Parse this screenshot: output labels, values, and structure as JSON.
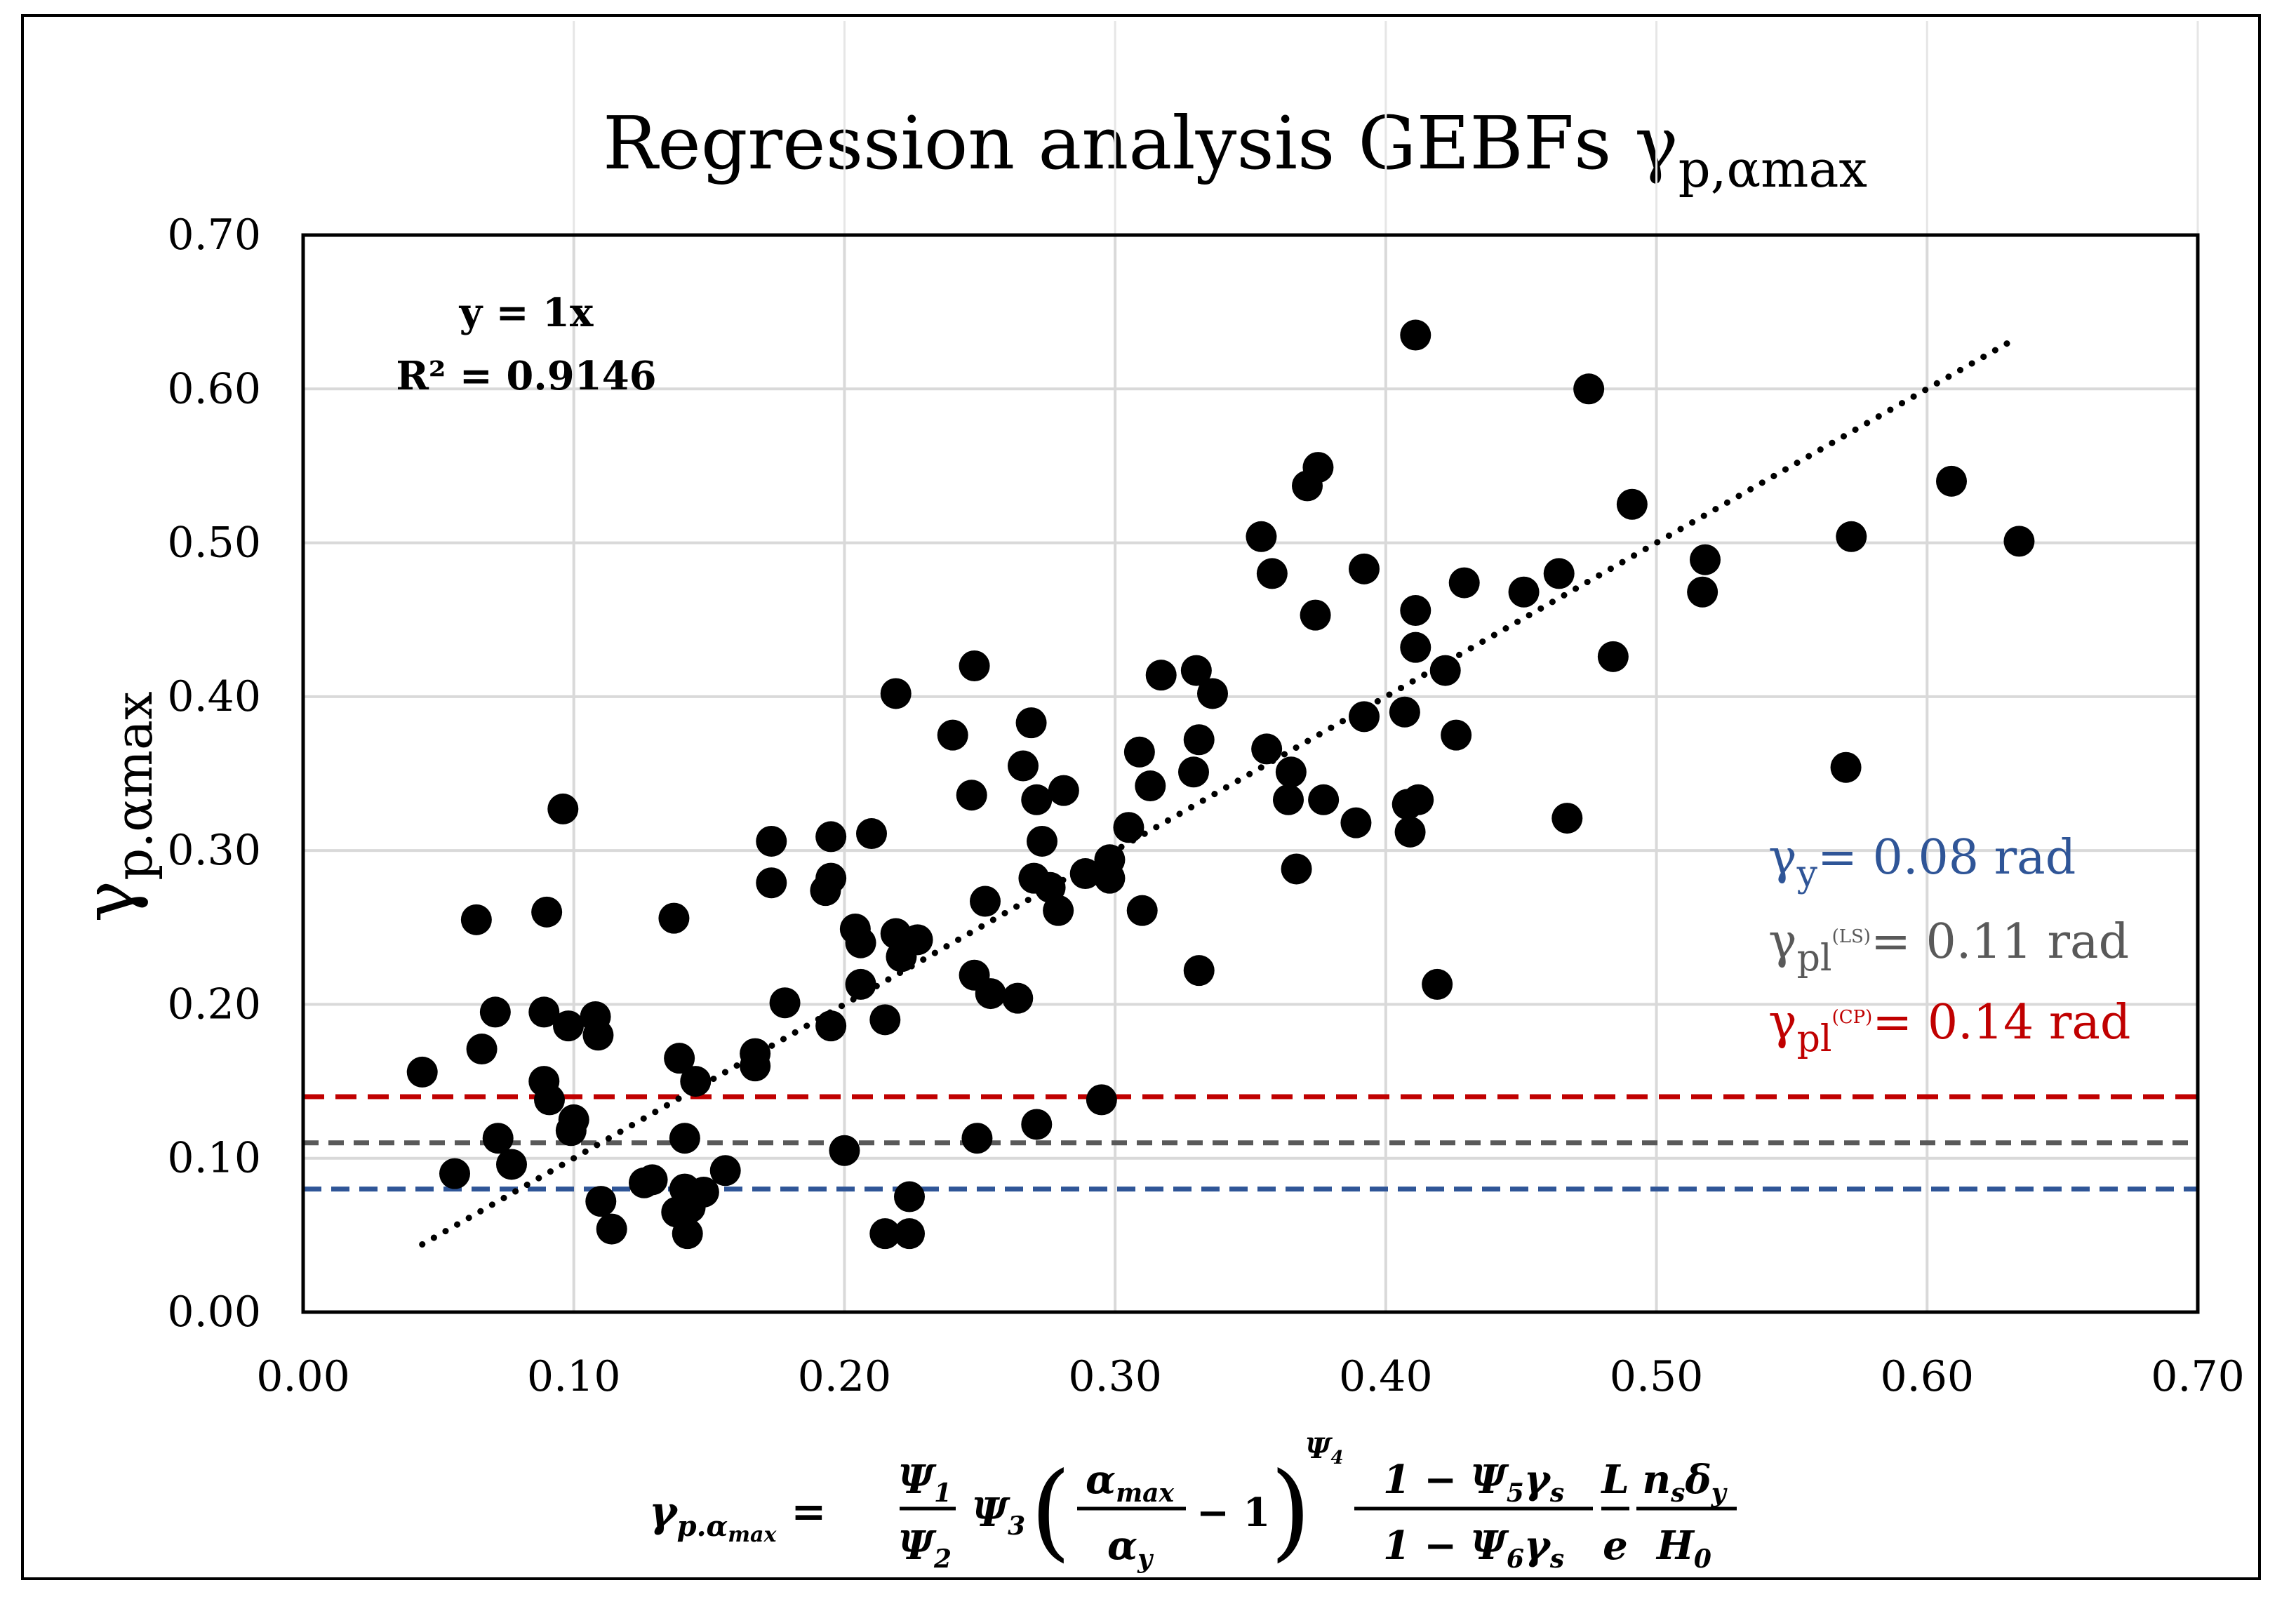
{
  "chart_data": {
    "type": "scatter",
    "title": "Regression analysis GEBFs γp,αmax",
    "title_main": "Regression analysis GEBFs γ",
    "title_sub": "p,αmax",
    "ylabel_main": "γ",
    "ylabel_sub": "p.αmax",
    "xlabel": "γp.αmax = (Ψ1/Ψ2) Ψ3 (αmax/αy − 1)^Ψ4 · (1 − Ψ5γs)/(1 − Ψ6γs) · (L/e) · (nsδy/H0)",
    "xlim": [
      0,
      0.7
    ],
    "ylim": [
      0,
      0.7
    ],
    "grid": true,
    "x_ticks": [
      "0.00",
      "0.10",
      "0.20",
      "0.30",
      "0.40",
      "0.50",
      "0.60",
      "0.70"
    ],
    "y_ticks": [
      "0.00",
      "0.10",
      "0.20",
      "0.30",
      "0.40",
      "0.50",
      "0.60",
      "0.70"
    ],
    "trendline": {
      "equation": "y = 1x",
      "r2_label": "R² = 0.9146",
      "x_range": [
        0.044,
        0.632
      ],
      "slope": 1.0
    },
    "reference_lines": [
      {
        "value": 0.08,
        "color": "#2f5597",
        "label_main": "γ",
        "label_sub": "y",
        "label_sup": "",
        "label_value": "= 0.08 rad"
      },
      {
        "value": 0.11,
        "color": "#595959",
        "label_main": "γ",
        "label_sub": "pl",
        "label_sup": "(LS)",
        "label_value": "= 0.11 rad"
      },
      {
        "value": 0.14,
        "color": "#c00000",
        "label_main": "γ",
        "label_sub": "pl",
        "label_sup": "(CP)",
        "label_value": "= 0.14 rad"
      }
    ],
    "points": [
      [
        0.044,
        0.156
      ],
      [
        0.056,
        0.09
      ],
      [
        0.064,
        0.255
      ],
      [
        0.066,
        0.171
      ],
      [
        0.071,
        0.195
      ],
      [
        0.072,
        0.113
      ],
      [
        0.077,
        0.096
      ],
      [
        0.09,
        0.26
      ],
      [
        0.089,
        0.195
      ],
      [
        0.089,
        0.15
      ],
      [
        0.091,
        0.138
      ],
      [
        0.096,
        0.327
      ],
      [
        0.098,
        0.186
      ],
      [
        0.099,
        0.118
      ],
      [
        0.1,
        0.125
      ],
      [
        0.108,
        0.192
      ],
      [
        0.109,
        0.18
      ],
      [
        0.11,
        0.072
      ],
      [
        0.114,
        0.054
      ],
      [
        0.126,
        0.084
      ],
      [
        0.129,
        0.086
      ],
      [
        0.137,
        0.256
      ],
      [
        0.139,
        0.165
      ],
      [
        0.138,
        0.065
      ],
      [
        0.141,
        0.113
      ],
      [
        0.141,
        0.08
      ],
      [
        0.142,
        0.051
      ],
      [
        0.143,
        0.068
      ],
      [
        0.145,
        0.15
      ],
      [
        0.148,
        0.078
      ],
      [
        0.156,
        0.092
      ],
      [
        0.167,
        0.168
      ],
      [
        0.167,
        0.16
      ],
      [
        0.173,
        0.306
      ],
      [
        0.173,
        0.279
      ],
      [
        0.178,
        0.201
      ],
      [
        0.193,
        0.274
      ],
      [
        0.195,
        0.282
      ],
      [
        0.195,
        0.309
      ],
      [
        0.195,
        0.186
      ],
      [
        0.2,
        0.105
      ],
      [
        0.204,
        0.249
      ],
      [
        0.206,
        0.24
      ],
      [
        0.206,
        0.213
      ],
      [
        0.21,
        0.311
      ],
      [
        0.215,
        0.19
      ],
      [
        0.215,
        0.051
      ],
      [
        0.219,
        0.402
      ],
      [
        0.219,
        0.246
      ],
      [
        0.221,
        0.231
      ],
      [
        0.224,
        0.075
      ],
      [
        0.224,
        0.051
      ],
      [
        0.227,
        0.242
      ],
      [
        0.24,
        0.375
      ],
      [
        0.248,
        0.42
      ],
      [
        0.247,
        0.336
      ],
      [
        0.248,
        0.219
      ],
      [
        0.249,
        0.113
      ],
      [
        0.252,
        0.267
      ],
      [
        0.254,
        0.207
      ],
      [
        0.264,
        0.204
      ],
      [
        0.266,
        0.355
      ],
      [
        0.269,
        0.383
      ],
      [
        0.27,
        0.282
      ],
      [
        0.271,
        0.122
      ],
      [
        0.271,
        0.333
      ],
      [
        0.273,
        0.306
      ],
      [
        0.276,
        0.276
      ],
      [
        0.279,
        0.261
      ],
      [
        0.281,
        0.339
      ],
      [
        0.289,
        0.285
      ],
      [
        0.295,
        0.138
      ],
      [
        0.298,
        0.294
      ],
      [
        0.298,
        0.282
      ],
      [
        0.305,
        0.315
      ],
      [
        0.309,
        0.364
      ],
      [
        0.31,
        0.261
      ],
      [
        0.313,
        0.342
      ],
      [
        0.317,
        0.414
      ],
      [
        0.33,
        0.417
      ],
      [
        0.329,
        0.351
      ],
      [
        0.331,
        0.372
      ],
      [
        0.331,
        0.222
      ],
      [
        0.336,
        0.402
      ],
      [
        0.354,
        0.504
      ],
      [
        0.356,
        0.366
      ],
      [
        0.358,
        0.48
      ],
      [
        0.364,
        0.333
      ],
      [
        0.365,
        0.351
      ],
      [
        0.367,
        0.288
      ],
      [
        0.371,
        0.537
      ],
      [
        0.374,
        0.453
      ],
      [
        0.375,
        0.549
      ],
      [
        0.377,
        0.333
      ],
      [
        0.389,
        0.318
      ],
      [
        0.392,
        0.483
      ],
      [
        0.392,
        0.387
      ],
      [
        0.407,
        0.39
      ],
      [
        0.408,
        0.33
      ],
      [
        0.409,
        0.312
      ],
      [
        0.411,
        0.635
      ],
      [
        0.411,
        0.456
      ],
      [
        0.411,
        0.432
      ],
      [
        0.412,
        0.333
      ],
      [
        0.419,
        0.213
      ],
      [
        0.422,
        0.417
      ],
      [
        0.426,
        0.375
      ],
      [
        0.429,
        0.474
      ],
      [
        0.451,
        0.468
      ],
      [
        0.464,
        0.48
      ],
      [
        0.467,
        0.321
      ],
      [
        0.475,
        0.6
      ],
      [
        0.484,
        0.426
      ],
      [
        0.491,
        0.525
      ],
      [
        0.517,
        0.468
      ],
      [
        0.518,
        0.489
      ],
      [
        0.57,
        0.354
      ],
      [
        0.572,
        0.504
      ],
      [
        0.609,
        0.54
      ],
      [
        0.634,
        0.501
      ]
    ]
  }
}
